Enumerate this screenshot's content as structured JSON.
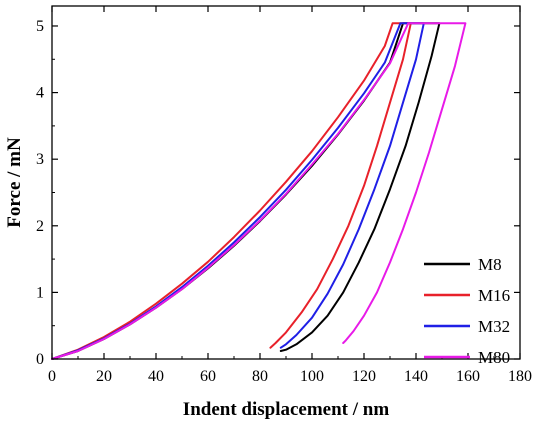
{
  "chart_data": {
    "type": "line",
    "xlabel": "Indent displacement / nm",
    "ylabel": "Force / mN",
    "xlim": [
      0,
      180
    ],
    "ylim": [
      0,
      5.3
    ],
    "xticks": [
      0,
      20,
      40,
      60,
      80,
      100,
      120,
      140,
      160,
      180
    ],
    "yticks": [
      0,
      1,
      2,
      3,
      4,
      5
    ],
    "grid": false,
    "legend_position": "bottom-right",
    "series": [
      {
        "name": "M8",
        "color": "#000000",
        "x": [
          0,
          10,
          20,
          30,
          40,
          50,
          60,
          70,
          80,
          90,
          100,
          110,
          120,
          130,
          135,
          145,
          149,
          146,
          141,
          136,
          130,
          124,
          118,
          112,
          106,
          100,
          94,
          90,
          88
        ],
        "y": [
          0,
          0.12,
          0.3,
          0.52,
          0.77,
          1.05,
          1.36,
          1.7,
          2.07,
          2.47,
          2.9,
          3.37,
          3.88,
          4.45,
          5.04,
          5.04,
          5.04,
          4.55,
          3.85,
          3.2,
          2.55,
          1.95,
          1.45,
          1.0,
          0.65,
          0.4,
          0.22,
          0.14,
          0.12
        ]
      },
      {
        "name": "M16",
        "color": "#e8212a",
        "x": [
          0,
          10,
          20,
          30,
          40,
          50,
          60,
          70,
          80,
          90,
          100,
          110,
          120,
          128,
          131,
          134,
          138,
          135,
          130,
          125,
          120,
          114,
          108,
          102,
          96,
          90,
          86,
          84
        ],
        "y": [
          0,
          0.14,
          0.33,
          0.56,
          0.83,
          1.13,
          1.46,
          1.83,
          2.23,
          2.66,
          3.12,
          3.63,
          4.18,
          4.7,
          5.04,
          5.04,
          5.04,
          4.5,
          3.85,
          3.2,
          2.6,
          2.0,
          1.5,
          1.05,
          0.7,
          0.4,
          0.24,
          0.17
        ]
      },
      {
        "name": "M32",
        "color": "#1f1fe6",
        "x": [
          0,
          10,
          20,
          30,
          40,
          50,
          60,
          70,
          80,
          90,
          100,
          110,
          120,
          128,
          134,
          138,
          143,
          140,
          135,
          130,
          124,
          118,
          112,
          106,
          100,
          94,
          90,
          88
        ],
        "y": [
          0,
          0.13,
          0.31,
          0.53,
          0.79,
          1.08,
          1.4,
          1.75,
          2.13,
          2.54,
          2.99,
          3.47,
          3.99,
          4.45,
          5.04,
          5.04,
          5.04,
          4.5,
          3.85,
          3.2,
          2.55,
          1.95,
          1.42,
          0.98,
          0.62,
          0.36,
          0.22,
          0.17
        ]
      },
      {
        "name": "M80",
        "color": "#e81ae8",
        "x": [
          0,
          10,
          20,
          30,
          40,
          50,
          60,
          70,
          80,
          90,
          100,
          110,
          120,
          130,
          137,
          150,
          159,
          155,
          150,
          145,
          140,
          135,
          130,
          125,
          120,
          116,
          113,
          112
        ],
        "y": [
          0,
          0.12,
          0.3,
          0.52,
          0.77,
          1.05,
          1.37,
          1.71,
          2.08,
          2.48,
          2.92,
          3.38,
          3.89,
          4.44,
          5.04,
          5.04,
          5.04,
          4.4,
          3.75,
          3.1,
          2.5,
          1.95,
          1.45,
          1.0,
          0.65,
          0.42,
          0.28,
          0.24
        ]
      }
    ]
  }
}
